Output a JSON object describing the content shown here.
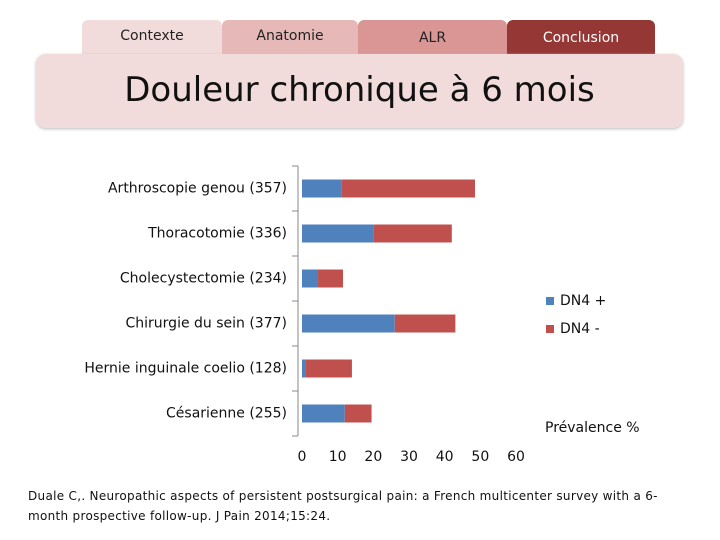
{
  "tabs": [
    "Contexte",
    "Anatomie",
    "ALR",
    "Conclusion"
  ],
  "chart_data": {
    "type": "stacked-barh",
    "title": "Douleur chronique à 6 mois",
    "categories": [
      "Arthroscopie genou (357)",
      "Thoracotomie (336)",
      "Cholecystectomie (234)",
      "Chirurgie du sein (377)",
      "Hernie inguinale coelio (128)",
      "Césarienne (255)"
    ],
    "series": [
      {
        "name": "DN4 +",
        "color": "#4f81bd",
        "values": [
          11,
          20,
          4.5,
          26,
          1,
          12
        ]
      },
      {
        "name": "DN4 -",
        "color": "#c0504d",
        "values": [
          37.5,
          22,
          7,
          17,
          13,
          7.5
        ]
      }
    ],
    "xlabel": "Prévalence %",
    "xlim": [
      0,
      60
    ],
    "xticks": [
      0,
      10,
      20,
      30,
      40,
      50,
      60
    ],
    "legend": "right"
  },
  "citation": "Duale C,. Neuropathic aspects of persistent postsurgical pain: a French multicenter survey with a 6-month prospective follow-up. J Pain 2014;15:24."
}
